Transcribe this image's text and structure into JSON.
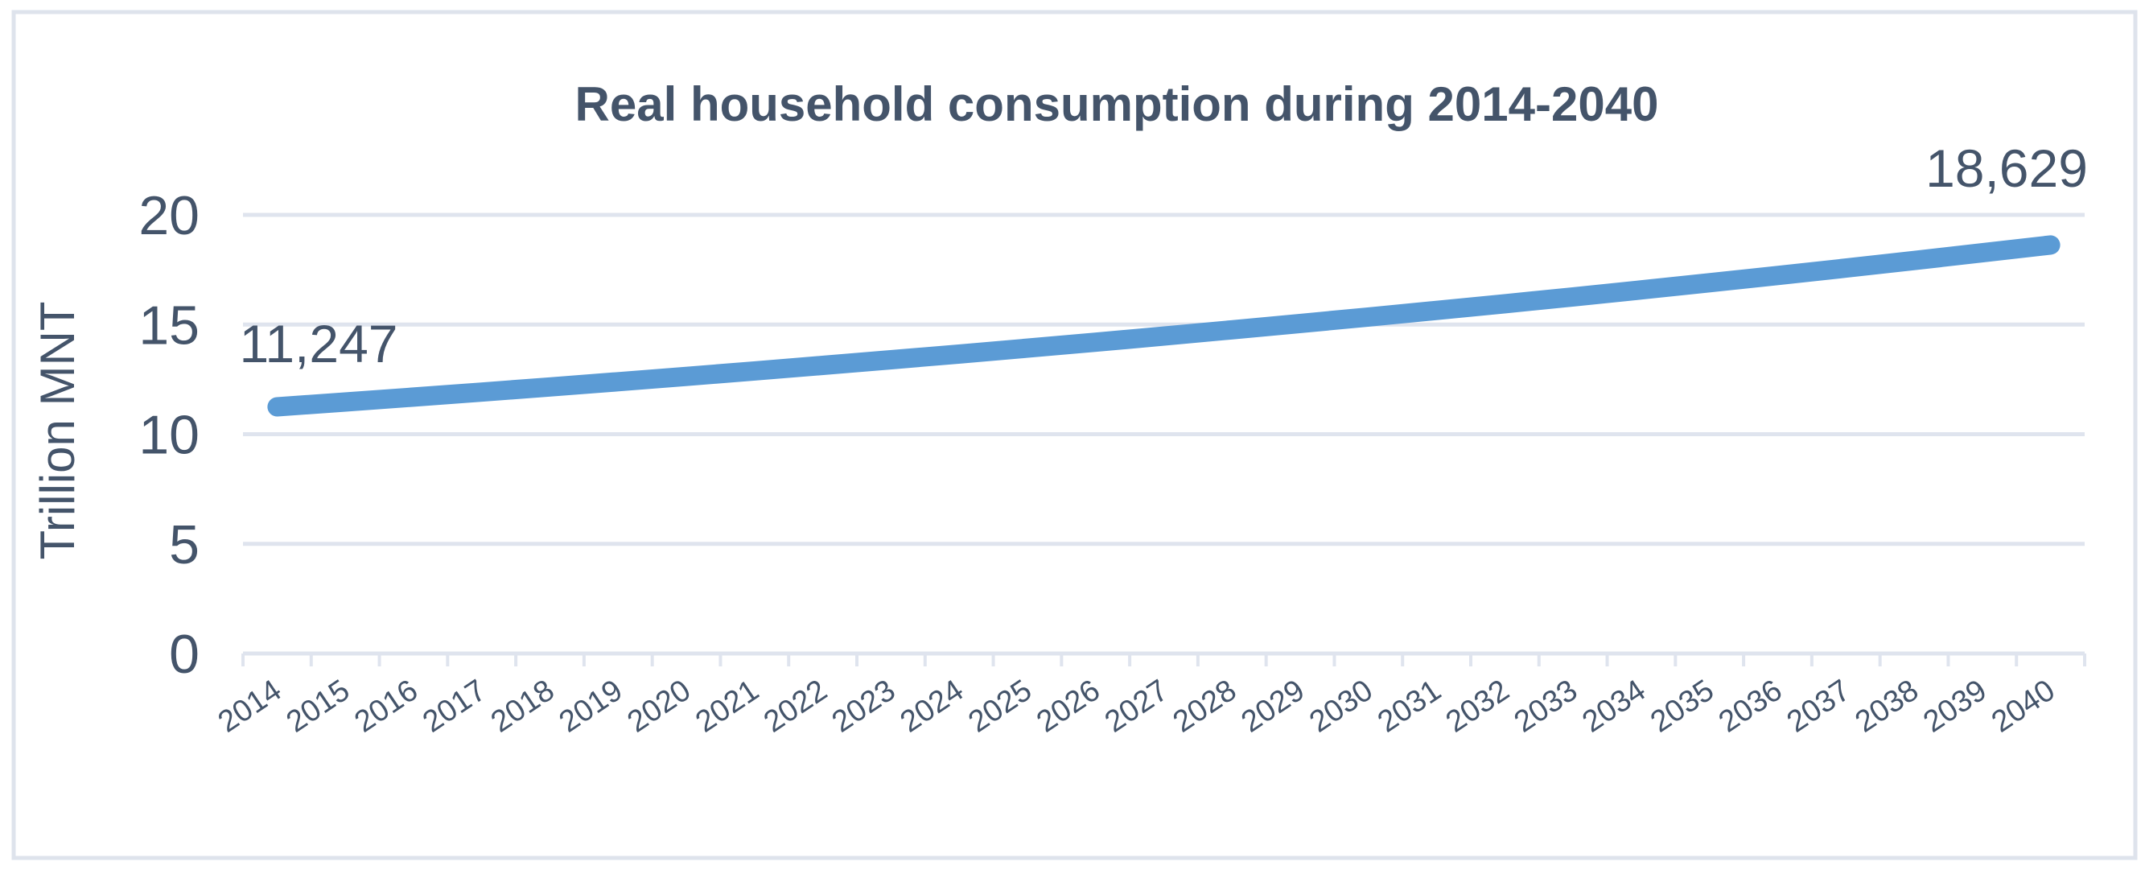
{
  "chart": {
    "title": "Real household consumption during 2014-2040",
    "y_axis_title": "Trillion MNT",
    "colors": {
      "line": "#5B9BD5",
      "text": "#44546A",
      "grid": "#dfe4ee",
      "frame": "#dee3ec",
      "background": "#ffffff"
    }
  },
  "chart_data": {
    "type": "line",
    "title": "Real household consumption during 2014-2040",
    "ylabel": "Trillion MNT",
    "xlabel": "",
    "categories": [
      "2014",
      "2015",
      "2016",
      "2017",
      "2018",
      "2019",
      "2020",
      "2021",
      "2022",
      "2023",
      "2024",
      "2025",
      "2026",
      "2027",
      "2028",
      "2029",
      "2030",
      "2031",
      "2032",
      "2033",
      "2034",
      "2035",
      "2036",
      "2037",
      "2038",
      "2039",
      "2040"
    ],
    "values": [
      11247,
      11467,
      11692,
      11921,
      12155,
      12393,
      12636,
      12884,
      13136,
      13393,
      13656,
      13924,
      14196,
      14475,
      14758,
      15048,
      15342,
      15643,
      15950,
      16262,
      16581,
      16906,
      17237,
      17575,
      17919,
      18271,
      18629
    ],
    "values_unit_per_axis": 1000,
    "ylim": [
      0,
      20
    ],
    "yticks": [
      0,
      5,
      10,
      15,
      20
    ],
    "grid": true,
    "legend_position": "none",
    "x_tick_rotation_deg": -34,
    "data_labels": [
      {
        "index": 0,
        "category": "2014",
        "text": "11,247"
      },
      {
        "index": 26,
        "category": "2040",
        "text": "18,629"
      }
    ]
  }
}
